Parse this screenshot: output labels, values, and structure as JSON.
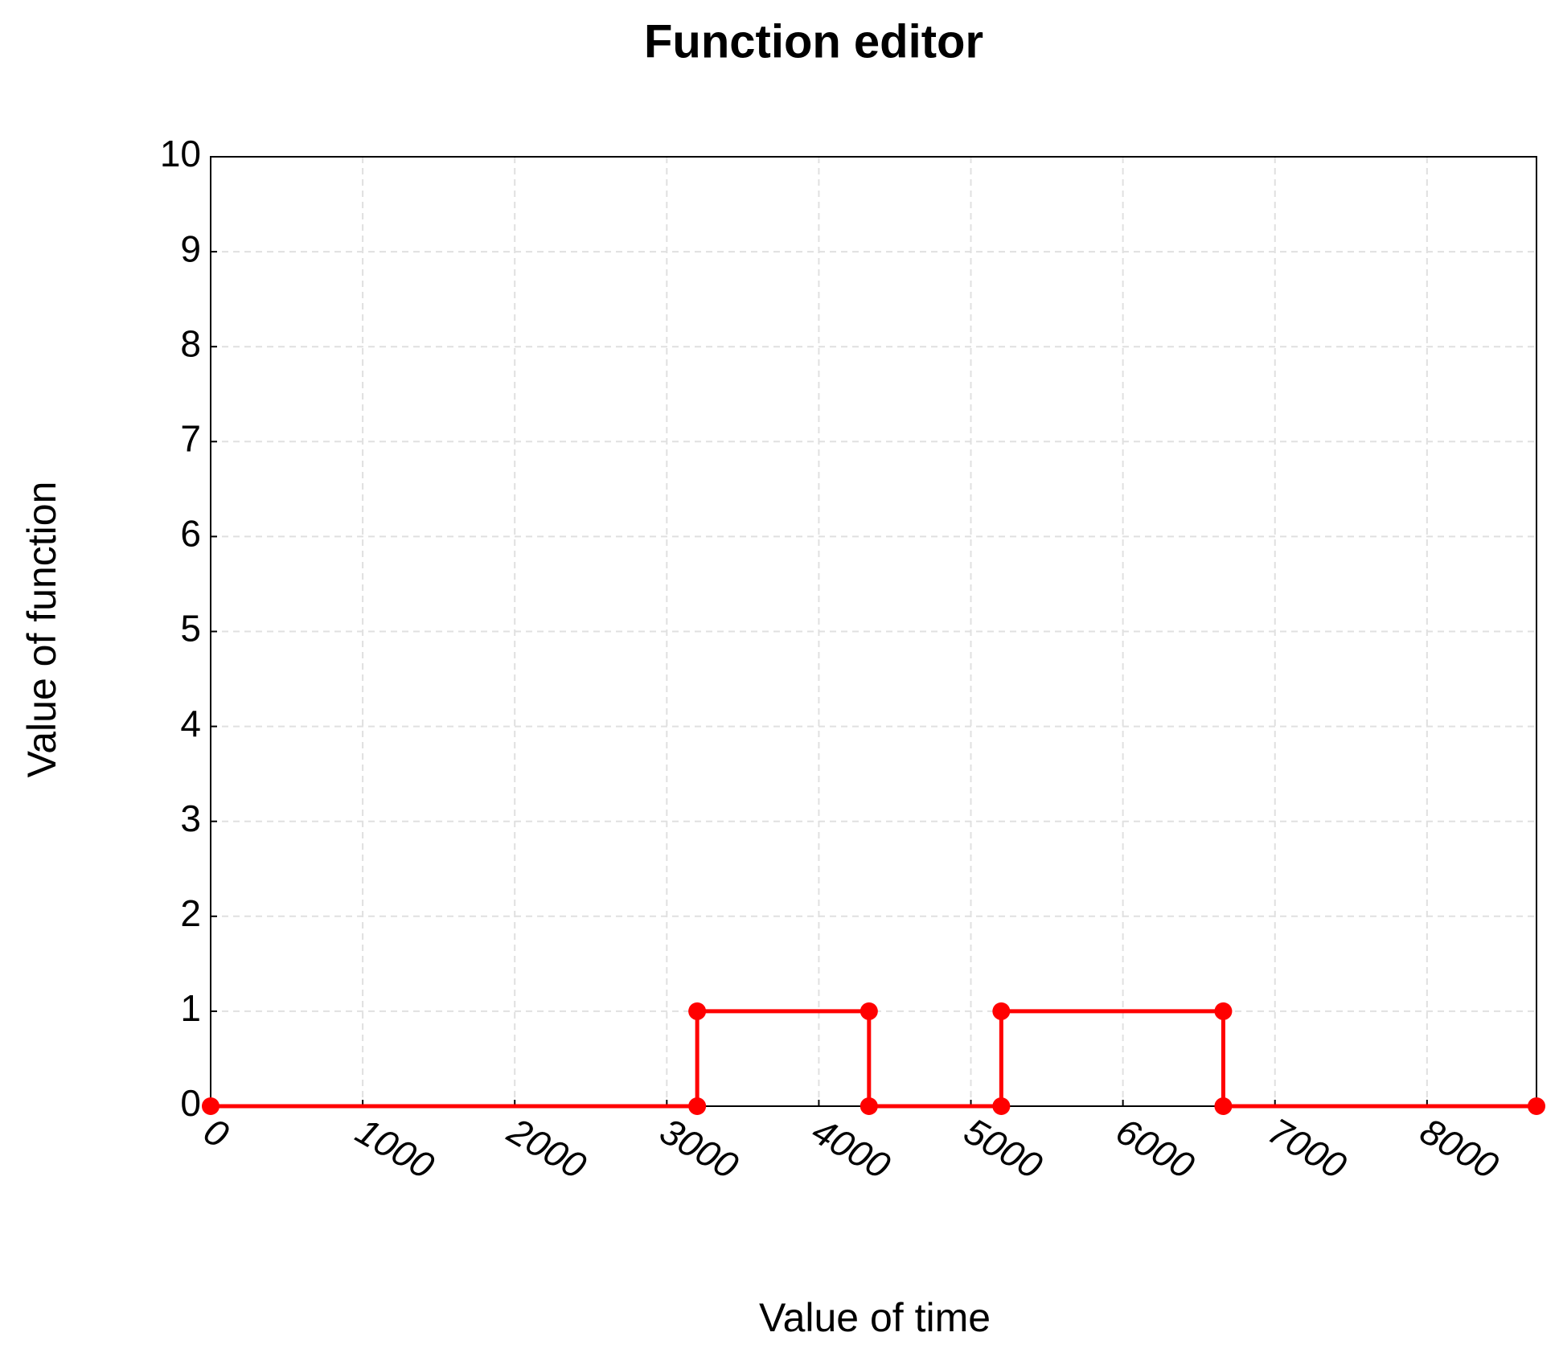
{
  "chart_data": {
    "type": "line",
    "title": "Function editor",
    "x_label": "Value of time",
    "y_label": "Value of function",
    "x": [
      0,
      3200,
      3200,
      4330,
      4330,
      5200,
      5200,
      6660,
      6660,
      8720
    ],
    "series": [
      {
        "color": "#ff0000",
        "values": [
          0,
          0,
          1,
          1,
          0,
          0,
          1,
          1,
          0,
          0
        ]
      }
    ],
    "xlim": [
      0,
      8720
    ],
    "xticks": [
      0,
      1000,
      2000,
      3000,
      4000,
      5000,
      6000,
      7000,
      8000
    ],
    "ylim": [
      0,
      10
    ],
    "yticks": [
      0,
      1,
      2,
      3,
      4,
      5,
      6,
      7,
      8,
      9,
      10
    ],
    "grid": true,
    "markers": true
  }
}
